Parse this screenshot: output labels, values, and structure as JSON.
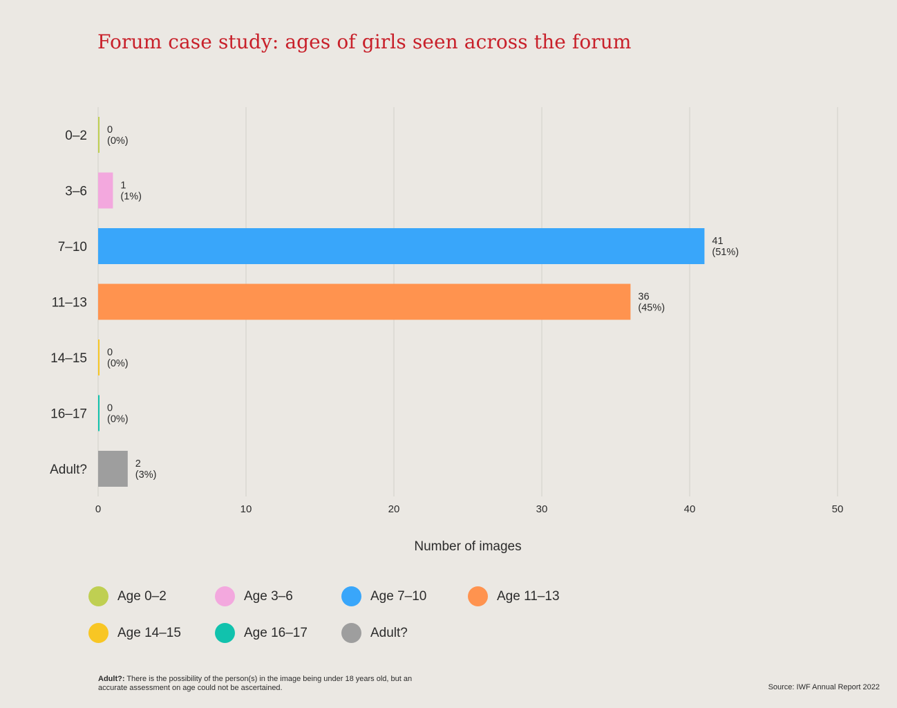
{
  "chart_data": {
    "type": "bar",
    "orientation": "horizontal",
    "title": "Forum case study: ages of girls seen across the forum",
    "xlabel": "Number of images",
    "ylabel": "",
    "xlim": [
      0,
      50
    ],
    "xticks": [
      0,
      10,
      20,
      30,
      40,
      50
    ],
    "grid": true,
    "categories": [
      "0–2",
      "3–6",
      "7–10",
      "11–13",
      "14–15",
      "16–17",
      "Adult?"
    ],
    "values": [
      0,
      1,
      41,
      36,
      0,
      0,
      2
    ],
    "percent_labels": [
      "(0%)",
      "(1%)",
      "(51%)",
      "(45%)",
      "(0%)",
      "(0%)",
      "(3%)"
    ],
    "colors": [
      "#bfcf52",
      "#f3a8de",
      "#39a6fa",
      "#ff934f",
      "#f8c624",
      "#11c2ad",
      "#9e9e9e"
    ],
    "legend": {
      "placement": "bottom-left",
      "entries": [
        "Age 0–2",
        "Age 3–6",
        "Age 7–10",
        "Age 11–13",
        "Age 14–15",
        "Age 16–17",
        "Adult?"
      ]
    }
  },
  "footnote": {
    "term": "Adult?:",
    "text": " There is the possibility of the person(s) in the image being under 18 years old, but an accurate assessment on age could not be ascertained."
  },
  "source": "Source: IWF Annual Report 2022"
}
